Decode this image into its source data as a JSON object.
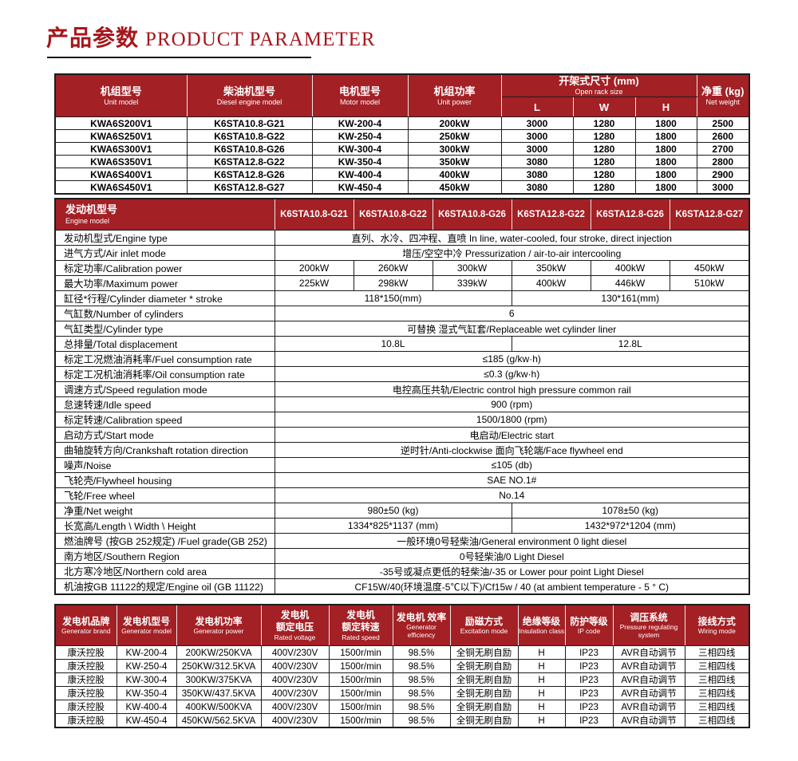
{
  "page": {
    "title_zh": "产品参数",
    "title_en": "PRODUCT PARAMETER"
  },
  "colors": {
    "header_red": "#a32025",
    "title_red": "#a6161c",
    "border_dark": "#1c1c1c"
  },
  "unit_table": {
    "col_headers": [
      {
        "zh": "机组型号",
        "en": "Unit model"
      },
      {
        "zh": "柴油机型号",
        "en": "Diesel engine model"
      },
      {
        "zh": "电机型号",
        "en": "Motor model"
      },
      {
        "zh": "机组功率",
        "en": "Unit power"
      }
    ],
    "rack_header": {
      "zh": "开架式尺寸 (mm)",
      "en": "Open rack size",
      "subcols": [
        "L",
        "W",
        "H"
      ]
    },
    "weight_header": {
      "zh": "净重 (kg)",
      "en": "Net weight"
    },
    "rows": [
      [
        "KWA6S200V1",
        "K6STA10.8-G21",
        "KW-200-4",
        "200kW",
        "3000",
        "1280",
        "1800",
        "2500"
      ],
      [
        "KWA6S250V1",
        "K6STA10.8-G22",
        "KW-250-4",
        "250kW",
        "3000",
        "1280",
        "1800",
        "2600"
      ],
      [
        "KWA6S300V1",
        "K6STA10.8-G26",
        "KW-300-4",
        "300kW",
        "3000",
        "1280",
        "1800",
        "2700"
      ],
      [
        "KWA6S350V1",
        "K6STA12.8-G22",
        "KW-350-4",
        "350kW",
        "3080",
        "1280",
        "1800",
        "2800"
      ],
      [
        "KWA6S400V1",
        "K6STA12.8-G26",
        "KW-400-4",
        "400kW",
        "3080",
        "1280",
        "1800",
        "2900"
      ],
      [
        "KWA6S450V1",
        "K6STA12.8-G27",
        "KW-450-4",
        "450kW",
        "3080",
        "1280",
        "1800",
        "3000"
      ]
    ]
  },
  "engine_table": {
    "header": {
      "zh": "发动机型号",
      "en": "Engine model"
    },
    "models": [
      "K6STA10.8-G21",
      "K6STA10.8-G22",
      "K6STA10.8-G26",
      "K6STA12.8-G22",
      "K6STA12.8-G26",
      "K6STA12.8-G27"
    ],
    "rows": [
      {
        "label": "发动机型式/Engine type",
        "cells": [
          {
            "text": "直列、水冷、四冲程、直喷  In line, water-cooled, four stroke, direct injection",
            "span": 6
          }
        ]
      },
      {
        "label": "进气方式/Air inlet mode",
        "cells": [
          {
            "text": "增压/空空中冷   Pressurization / air-to-air intercooling",
            "span": 6
          }
        ]
      },
      {
        "label": "标定功率/Calibration power",
        "cells": [
          {
            "text": "200kW"
          },
          {
            "text": "260kW"
          },
          {
            "text": "300kW"
          },
          {
            "text": "350kW"
          },
          {
            "text": "400kW"
          },
          {
            "text": "450kW"
          }
        ]
      },
      {
        "label": "最大功率/Maximum power",
        "cells": [
          {
            "text": "225kW"
          },
          {
            "text": "298kW"
          },
          {
            "text": "339kW"
          },
          {
            "text": "400kW"
          },
          {
            "text": "446kW"
          },
          {
            "text": "510kW"
          }
        ]
      },
      {
        "label": "缸径*行程/Cylinder diameter * stroke",
        "cells": [
          {
            "text": "118*150(mm)",
            "span": 3
          },
          {
            "text": "130*161(mm)",
            "span": 3
          }
        ]
      },
      {
        "label": "气缸数/Number of cylinders",
        "cells": [
          {
            "text": "6",
            "span": 6
          }
        ]
      },
      {
        "label": "气缸类型/Cylinder type",
        "cells": [
          {
            "text": "可替换 湿式气缸套/Replaceable wet cylinder liner",
            "span": 6
          }
        ]
      },
      {
        "label": "总排量/Total displacement",
        "cells": [
          {
            "text": "10.8L",
            "span": 3
          },
          {
            "text": "12.8L",
            "span": 3
          }
        ]
      },
      {
        "label": "标定工况燃油消耗率/Fuel consumption rate",
        "cells": [
          {
            "text": "≤185 (g/kw·h)",
            "span": 6
          }
        ]
      },
      {
        "label": "标定工况机油消耗率/Oil consumption rate",
        "cells": [
          {
            "text": "≤0.3 (g/kw·h)",
            "span": 6
          }
        ]
      },
      {
        "label": "调速方式/Speed regulation mode",
        "cells": [
          {
            "text": "电控高压共轨/Electric control high pressure common rail",
            "span": 6
          }
        ]
      },
      {
        "label": "怠速转速/Idle speed",
        "cells": [
          {
            "text": "900 (rpm)",
            "span": 6
          }
        ]
      },
      {
        "label": "标定转速/Calibration speed",
        "cells": [
          {
            "text": "1500/1800 (rpm)",
            "span": 6
          }
        ]
      },
      {
        "label": "启动方式/Start mode",
        "cells": [
          {
            "text": "电启动/Electric start",
            "span": 6
          }
        ]
      },
      {
        "label": "曲轴旋转方向/Crankshaft rotation direction",
        "cells": [
          {
            "text": "逆时针/Anti-clockwise 面向飞轮端/Face flywheel end",
            "span": 6
          }
        ]
      },
      {
        "label": "噪声/Noise",
        "cells": [
          {
            "text": "≤105 (db)",
            "span": 6
          }
        ]
      },
      {
        "label": "飞轮壳/Flywheel housing",
        "cells": [
          {
            "text": "SAE NO.1#",
            "span": 6
          }
        ]
      },
      {
        "label": "飞轮/Free wheel",
        "cells": [
          {
            "text": "No.14",
            "span": 6
          }
        ]
      },
      {
        "label": "净重/Net weight",
        "cells": [
          {
            "text": "980±50 (kg)",
            "span": 3
          },
          {
            "text": "1078±50 (kg)",
            "span": 3
          }
        ]
      },
      {
        "label": "长宽高/Length \\ Width \\ Height",
        "cells": [
          {
            "text": "1334*825*1137 (mm)",
            "span": 3
          },
          {
            "text": "1432*972*1204 (mm)",
            "span": 3
          }
        ]
      },
      {
        "label": "燃油牌号 (按GB 252规定) /Fuel grade(GB 252)",
        "cells": [
          {
            "text": "一般环境0号轻柴油/General environment 0 light diesel",
            "span": 6
          }
        ]
      },
      {
        "label": "南方地区/Southern Region",
        "cells": [
          {
            "text": "0号轻柴油/0 Light Diesel",
            "span": 6
          }
        ]
      },
      {
        "label": "北方寒冷地区/Northern cold area",
        "cells": [
          {
            "text": "-35号或凝点更低的轻柴油/-35 or Lower pour point Light Diesel",
            "span": 6
          }
        ]
      },
      {
        "label": "机油按GB 11122的规定/Engine oil (GB 11122)",
        "cells": [
          {
            "text": "CF15W/40(环境温度-5℃以下)/Cf15w / 40 (at ambient temperature - 5 ° C)",
            "span": 6
          }
        ]
      }
    ]
  },
  "generator_table": {
    "headers": [
      {
        "zh": "发电机品牌",
        "en": "Generator brand"
      },
      {
        "zh": "发电机型号",
        "en": "Generator model"
      },
      {
        "zh": "发电机功率",
        "en": "Generator power"
      },
      {
        "zh": "发电机\n额定电压",
        "en": "Rated voltage"
      },
      {
        "zh": "发电机\n额定转速",
        "en": "Rated speed"
      },
      {
        "zh": "发电机 效率",
        "en": "Generator efficiency"
      },
      {
        "zh": "励磁方式",
        "en": "Excitation mode"
      },
      {
        "zh": "绝缘等级",
        "en": "Insulation class"
      },
      {
        "zh": "防护等级",
        "en": "IP code"
      },
      {
        "zh": "调压系统",
        "en": "Pressure regulating system"
      },
      {
        "zh": "接线方式",
        "en": "Wiring mode"
      }
    ],
    "rows": [
      [
        "康沃控股",
        "KW-200-4",
        "200KW/250KVA",
        "400V/230V",
        "1500r/min",
        "98.5%",
        "全铜无刷自励",
        "H",
        "IP23",
        "AVR自动调节",
        "三相四线"
      ],
      [
        "康沃控股",
        "KW-250-4",
        "250KW/312.5KVA",
        "400V/230V",
        "1500r/min",
        "98.5%",
        "全铜无刷自励",
        "H",
        "IP23",
        "AVR自动调节",
        "三相四线"
      ],
      [
        "康沃控股",
        "KW-300-4",
        "300KW/375KVA",
        "400V/230V",
        "1500r/min",
        "98.5%",
        "全铜无刷自励",
        "H",
        "IP23",
        "AVR自动调节",
        "三相四线"
      ],
      [
        "康沃控股",
        "KW-350-4",
        "350KW/437.5KVA",
        "400V/230V",
        "1500r/min",
        "98.5%",
        "全铜无刷自励",
        "H",
        "IP23",
        "AVR自动调节",
        "三相四线"
      ],
      [
        "康沃控股",
        "KW-400-4",
        "400KW/500KVA",
        "400V/230V",
        "1500r/min",
        "98.5%",
        "全铜无刷自励",
        "H",
        "IP23",
        "AVR自动调节",
        "三相四线"
      ],
      [
        "康沃控股",
        "KW-450-4",
        "450KW/562.5KVA",
        "400V/230V",
        "1500r/min",
        "98.5%",
        "全铜无刷自励",
        "H",
        "IP23",
        "AVR自动调节",
        "三相四线"
      ]
    ]
  }
}
